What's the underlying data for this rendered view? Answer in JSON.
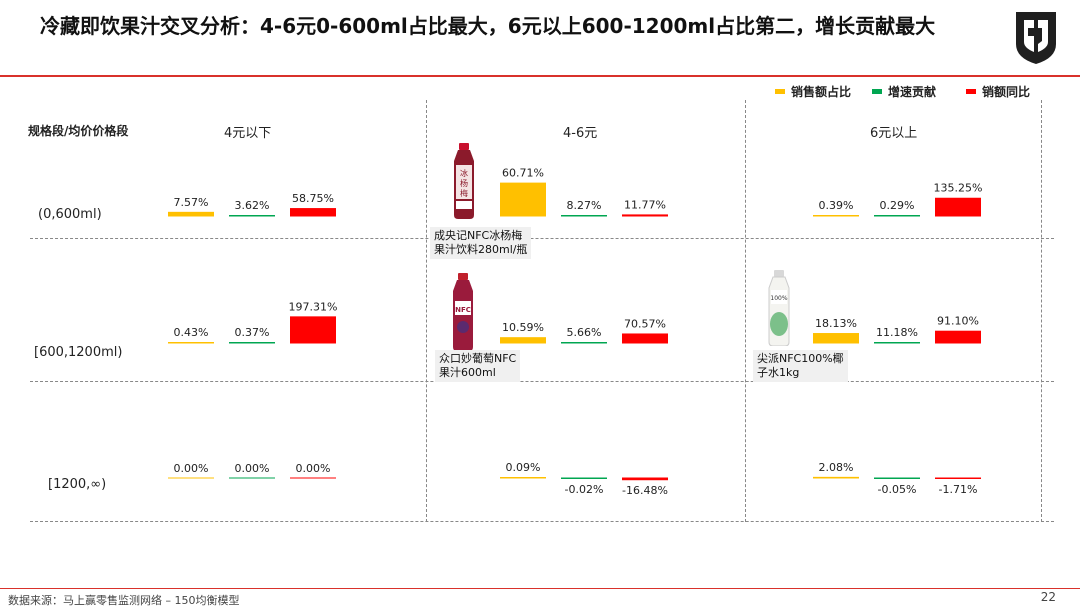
{
  "header": {
    "title": "冷藏即饮果汁交叉分析：4-6元0-600ml占比最大，6元以上600-1200ml占比第二，增长贡献最大"
  },
  "legend": [
    {
      "label": "销售额占比",
      "color": "#FFC000"
    },
    {
      "label": "增速贡献",
      "color": "#00A651"
    },
    {
      "label": "销额同比",
      "color": "#FF0000"
    }
  ],
  "axis_title": "规格段/均价价格段",
  "columns": [
    "4元以下",
    "4-6元",
    "6元以上"
  ],
  "rows": [
    "(0,600ml)",
    "[600,1200ml)",
    "[1200,∞)"
  ],
  "products": [
    {
      "label_line1": "成央记NFC冰杨梅",
      "label_line2": "果汁饮料280ml/瓶",
      "icon": "bottle-red-icon"
    },
    {
      "label_line1": "众口妙葡萄NFC",
      "label_line2": "果汁600ml",
      "icon": "bottle-purple-icon"
    },
    {
      "label_line1": "尖派NFC100%椰",
      "label_line2": "子水1kg",
      "icon": "bottle-white-icon"
    }
  ],
  "chart_data": {
    "type": "bar",
    "title": "冷藏即饮果汁交叉分析：4-6元0-600ml占比最大，6元以上600-1200ml占比第二，增长贡献最大",
    "series": [
      {
        "name": "销售额占比",
        "color": "#FFC000",
        "values": [
          [
            7.57,
            60.71,
            0.39
          ],
          [
            0.43,
            10.59,
            18.13
          ],
          [
            0.0,
            0.09,
            2.08
          ]
        ]
      },
      {
        "name": "增速贡献",
        "color": "#00A651",
        "values": [
          [
            3.62,
            8.27,
            0.29
          ],
          [
            0.37,
            5.66,
            11.18
          ],
          [
            0.0,
            -0.02,
            -0.05
          ]
        ]
      },
      {
        "name": "销额同比",
        "color": "#FF0000",
        "values": [
          [
            58.75,
            11.77,
            135.25
          ],
          [
            197.31,
            70.57,
            91.1
          ],
          [
            0.0,
            -16.48,
            -1.71
          ]
        ]
      }
    ],
    "labels": [
      [
        [
          "7.57%",
          "3.62%",
          "58.75%"
        ],
        [
          "60.71%",
          "8.27%",
          "11.77%"
        ],
        [
          "0.39%",
          "0.29%",
          "135.25%"
        ]
      ],
      [
        [
          "0.43%",
          "0.37%",
          "197.31%"
        ],
        [
          "10.59%",
          "5.66%",
          "70.57%"
        ],
        [
          "18.13%",
          "11.18%",
          "91.10%"
        ]
      ],
      [
        [
          "0.00%",
          "0.00%",
          "0.00%"
        ],
        [
          "0.09%",
          "-0.02%",
          "-16.48%"
        ],
        [
          "2.08%",
          "-0.05%",
          "-1.71%"
        ]
      ]
    ],
    "legend_position": "top-right"
  },
  "footer": {
    "source": "数据来源：马上赢零售监测网络 – 150均衡模型",
    "page": "22"
  }
}
